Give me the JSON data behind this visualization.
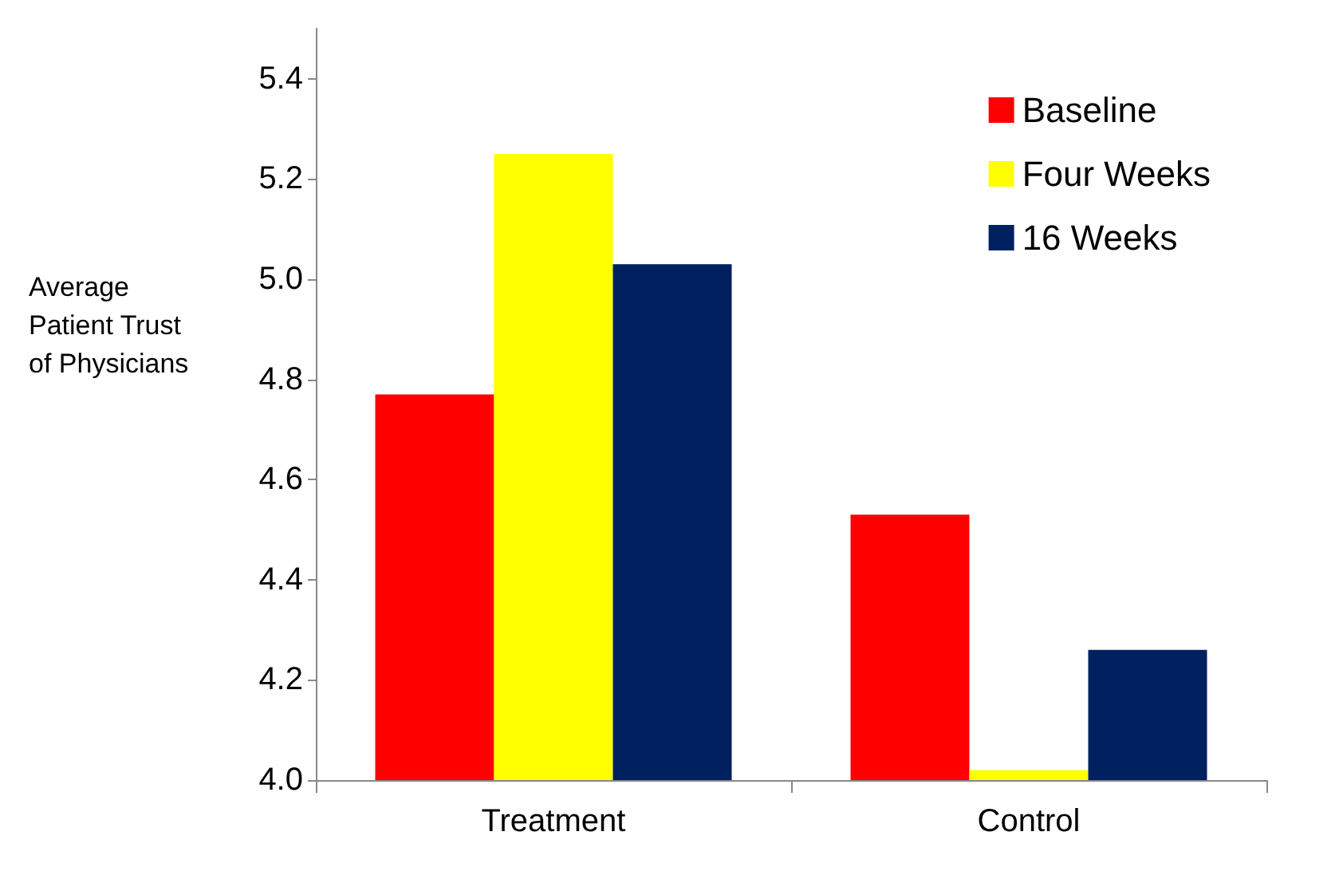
{
  "chart_data": {
    "type": "bar",
    "ylabel": "Average Patient Trust of Physicians",
    "categories": [
      "Treatment",
      "Control"
    ],
    "series": [
      {
        "name": "Baseline",
        "color": "#ff0000",
        "values": [
          4.77,
          4.53
        ]
      },
      {
        "name": "Four Weeks",
        "color": "#ffff00",
        "values": [
          5.25,
          4.02
        ]
      },
      {
        "name": "16 Weeks",
        "color": "#002060",
        "values": [
          5.03,
          4.26
        ]
      }
    ],
    "ylim": [
      4.0,
      5.5
    ],
    "yticks": [
      {
        "value": 4.0,
        "label": "4.0"
      },
      {
        "value": 4.2,
        "label": "4.2"
      },
      {
        "value": 4.4,
        "label": "4.4"
      },
      {
        "value": 4.6,
        "label": "4.6"
      },
      {
        "value": 4.8,
        "label": "4.8"
      },
      {
        "value": 5.0,
        "label": "5.0"
      },
      {
        "value": 5.2,
        "label": "5.2"
      },
      {
        "value": 5.4,
        "label": "5.4"
      }
    ],
    "grid": false,
    "legend": "top right"
  }
}
